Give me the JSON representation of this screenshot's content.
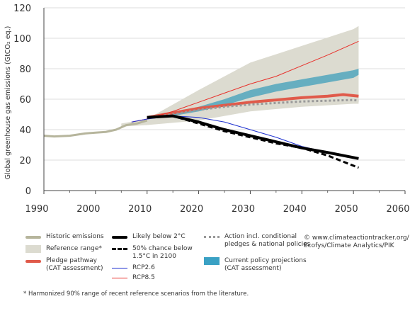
{
  "chart_data": {
    "type": "line",
    "title": "",
    "xlabel": "",
    "ylabel": "Global greenhouse gas emissions (GtCO₂ eq.)",
    "xlim": [
      1990,
      2060
    ],
    "ylim": [
      0,
      120
    ],
    "x_ticks": [
      "1990",
      "2000",
      "2010",
      "2020",
      "2030",
      "2040",
      "2050",
      "2060"
    ],
    "y_ticks": [
      "0",
      "20",
      "40",
      "60",
      "80",
      "100",
      "120"
    ],
    "grid": "horizontal",
    "bands": [
      {
        "name": "Reference range*",
        "color": "#dcdbd0",
        "x": [
          2005,
          2010,
          2020,
          2030,
          2040,
          2050,
          2051
        ],
        "upper": [
          44,
          47,
          66,
          84,
          95,
          106,
          108
        ],
        "lower": [
          42,
          43,
          46,
          52,
          55,
          57,
          57
        ]
      },
      {
        "name": "Current policy projections (CAT assessment)",
        "color": "#66aec0",
        "x": [
          2010,
          2015,
          2020,
          2025,
          2030,
          2035,
          2040,
          2045,
          2050,
          2051
        ],
        "upper": [
          49,
          51,
          55,
          60,
          66,
          70,
          73,
          76,
          79,
          80
        ],
        "lower": [
          48,
          49,
          52,
          56,
          61,
          65,
          68,
          71,
          74,
          76
        ]
      }
    ],
    "series": [
      {
        "name": "Historic emissions",
        "color": "#b6b59c",
        "style": "solid",
        "width": 3,
        "x": [
          1990,
          1992,
          1995,
          1998,
          2000,
          2002,
          2004,
          2006,
          2008,
          2010
        ],
        "values": [
          36,
          35.5,
          36,
          37.5,
          38,
          38.5,
          40,
          43,
          44,
          46
        ]
      },
      {
        "name": "Pledge pathway (CAT assessment)",
        "color": "#e05a4a",
        "style": "solid",
        "width": 4,
        "x": [
          2010,
          2015,
          2020,
          2025,
          2030,
          2035,
          2040,
          2045,
          2048,
          2051
        ],
        "values": [
          48,
          51,
          54,
          56,
          58,
          59.5,
          61,
          62,
          63,
          62
        ]
      },
      {
        "name": "Action incl. conditional pledges & national policies",
        "color": "#999999",
        "style": "dotted",
        "width": 3,
        "x": [
          2010,
          2015,
          2020,
          2025,
          2030,
          2035,
          2040,
          2045,
          2050,
          2051
        ],
        "values": [
          48,
          50,
          53,
          55,
          56.5,
          57.5,
          58.5,
          59,
          59.5,
          59
        ]
      },
      {
        "name": "RCP8.5",
        "color": "#e8302a",
        "style": "solid",
        "width": 1,
        "x": [
          2007,
          2010,
          2015,
          2020,
          2025,
          2030,
          2035,
          2040,
          2045,
          2051
        ],
        "values": [
          45,
          47,
          52,
          58,
          64,
          70,
          75,
          82,
          89,
          98
        ]
      },
      {
        "name": "RCP2.6",
        "color": "#1c2fcf",
        "style": "solid",
        "width": 1,
        "x": [
          2007,
          2010,
          2015,
          2020,
          2025,
          2030,
          2035,
          2040,
          2045,
          2051
        ],
        "values": [
          45,
          47,
          49,
          48,
          45,
          40,
          35,
          29,
          25,
          21
        ]
      },
      {
        "name": "Likely below 2°C",
        "color": "#000000",
        "style": "solid",
        "width": 4,
        "x": [
          2010,
          2015,
          2020,
          2025,
          2030,
          2035,
          2040,
          2045,
          2051
        ],
        "values": [
          48,
          49,
          45,
          40,
          36,
          32,
          28,
          25,
          21
        ]
      },
      {
        "name": "50% chance below 1.5°C in 2100",
        "color": "#000000",
        "style": "dashed",
        "width": 3,
        "x": [
          2010,
          2015,
          2020,
          2025,
          2030,
          2035,
          2040,
          2045,
          2051
        ],
        "values": [
          48,
          49,
          44,
          39,
          35,
          31,
          28,
          23,
          15
        ]
      }
    ],
    "legend": [
      {
        "label": "Historic emissions",
        "kind": "line",
        "color": "#b6b59c"
      },
      {
        "label": "Reference range*",
        "kind": "box",
        "color": "#dcdbd0"
      },
      {
        "label": "Pledge pathway\n(CAT assessment)",
        "kind": "line",
        "color": "#e05a4a"
      },
      {
        "label": "Likely below 2°C",
        "kind": "line",
        "color": "#000000"
      },
      {
        "label": "50% chance below\n1.5°C in 2100",
        "kind": "dashed",
        "color": "#000000"
      },
      {
        "label": "RCP2.6",
        "kind": "thin",
        "color": "#1c2fcf"
      },
      {
        "label": "RCP8.5",
        "kind": "thin",
        "color": "#e8302a"
      },
      {
        "label": "Action incl. conditional\npledges & national policies",
        "kind": "dotted",
        "color": "#999999"
      },
      {
        "label": "Current policy projections\n(CAT assessment)",
        "kind": "box",
        "color": "#3aa1c4"
      }
    ],
    "legend_position": "bottom",
    "credit": "© www.climateactiontracker.org/\nEcofys/Climate Analytics/PIK",
    "footnote": "*  Harmonized 90% range of recent reference scenarios from the literature."
  }
}
